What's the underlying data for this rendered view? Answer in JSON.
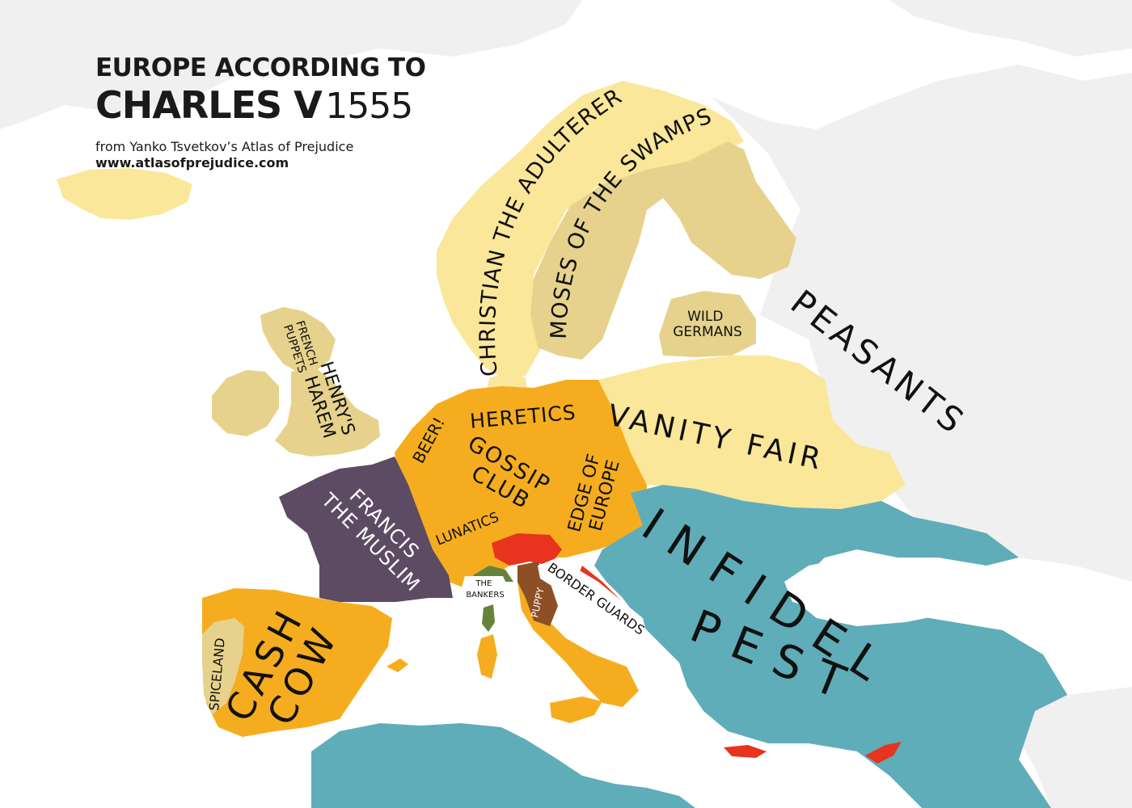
{
  "title": {
    "line1": "EUROPE ACCORDING TO",
    "line2_bold": "CHARLES V",
    "line2_year": "1555",
    "source": "from Yanko Tsvetkov’s Atlas of Prejudice",
    "url": "www.atlasofprejudice.com"
  },
  "colors": {
    "sea": "#ffffff",
    "unlabeled_land": "#f0f0f0",
    "pale_yellow": "#fbe79a",
    "tan": "#e6d28c",
    "orange": "#f5ad1f",
    "purple": "#5d4a63",
    "teal": "#5fadb9",
    "red": "#e8331e",
    "olive": "#64843c",
    "brown": "#8c4f26",
    "label_dark": "#111111",
    "label_light": "#ffffff"
  },
  "labels": {
    "christian": "CHRISTIAN THE ADULTERER",
    "moses": "MOSES OF THE SWAMPS",
    "wild_line1": "WILD",
    "wild_line2": "GERMANS",
    "peasants": "PEASANTS",
    "french_puppets_line1": "FRENCH",
    "french_puppets_line2": "PUPPETS",
    "henry_line1": "HENRY'S",
    "henry_line2": "HAREM",
    "beer": "BEER!",
    "heretics": "HERETICS",
    "gossip_line1": "GOSSIP",
    "gossip_line2": "CLUB",
    "edge_line1": "EDGE OF",
    "edge_line2": "EUROPE",
    "vanity": "VANITY FAIR",
    "francis_line1": "FRANCIS",
    "francis_line2": "THE MUSLIM",
    "lunatics": "LUNATICS",
    "infidel": "INFIDEL",
    "pest": "PEST",
    "bankers_line1": "THE",
    "bankers_line2": "BANKERS",
    "puppy": "PUPPY",
    "border_guards": "BORDER GUARDS",
    "spiceland": "SPICELAND",
    "cash_line1": "CASH",
    "cash_line2": "COW"
  }
}
